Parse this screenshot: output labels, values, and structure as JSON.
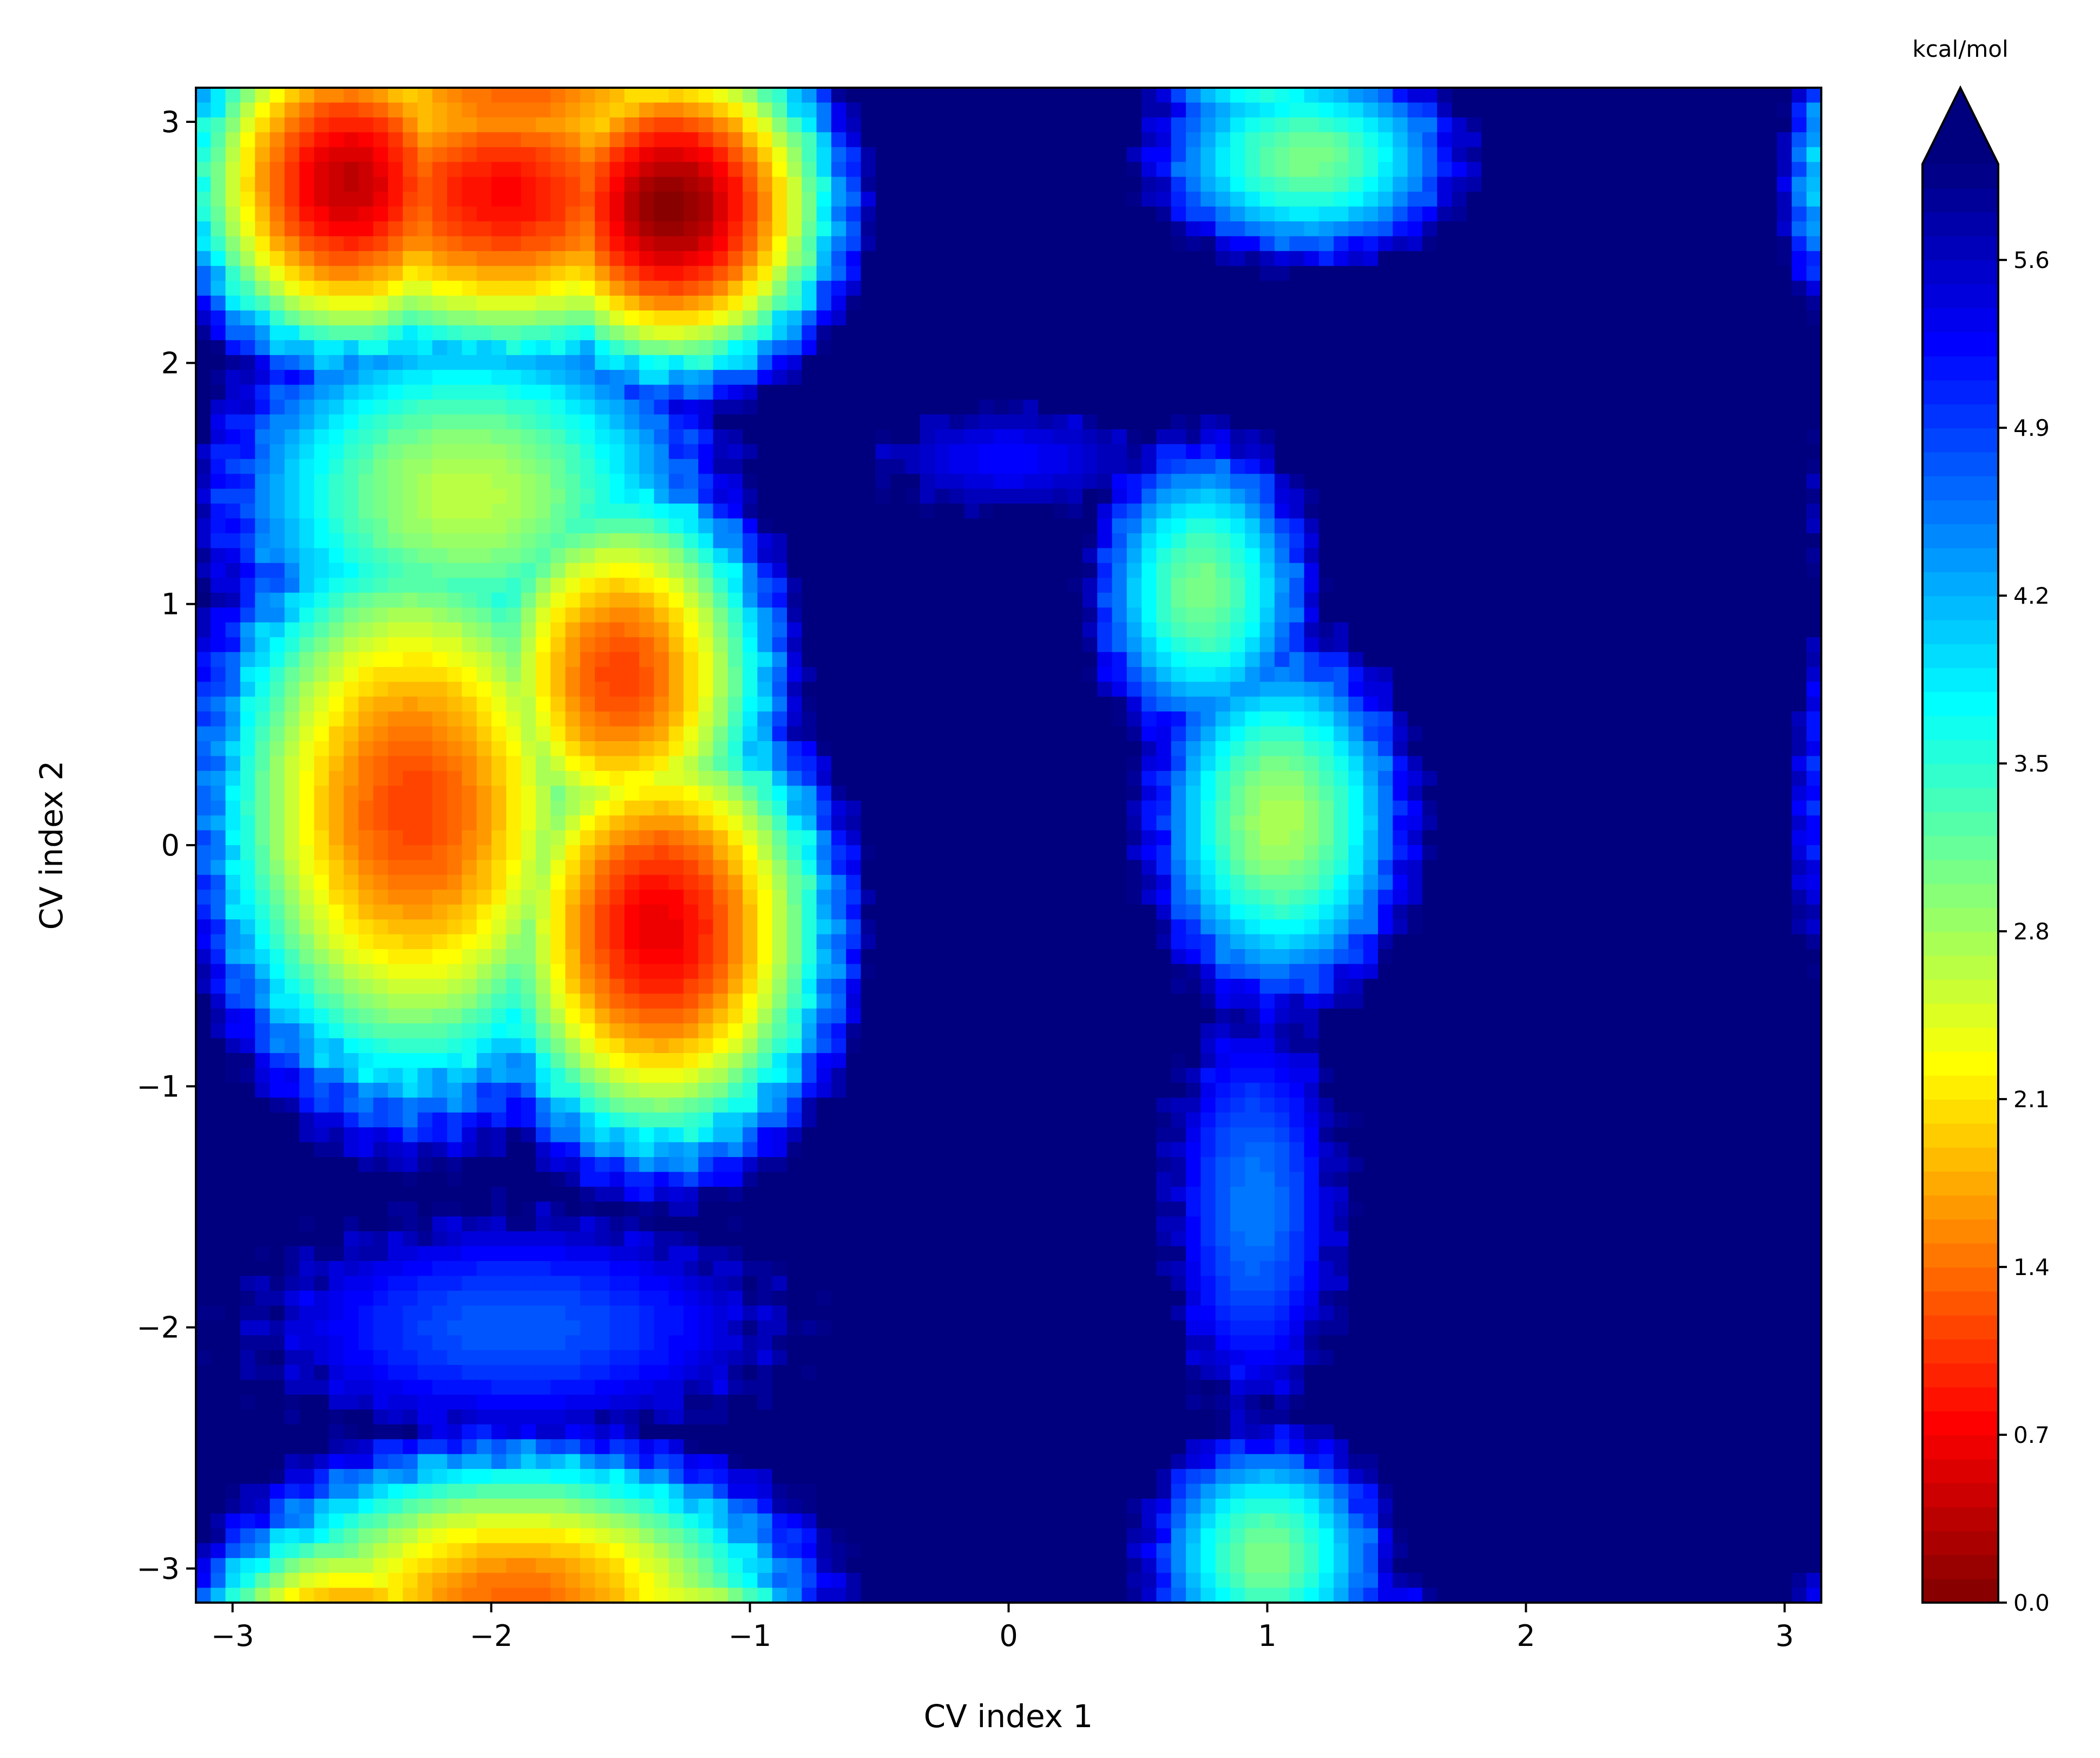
{
  "chart_data": {
    "type": "heatmap",
    "subtype": "filled-contour free energy surface",
    "xlabel": "CV index 1",
    "ylabel": "CV index 2",
    "xlim": [
      -3.14159,
      3.14159
    ],
    "ylim": [
      -3.14159,
      3.14159
    ],
    "xticks": [
      "−3",
      "−2",
      "−1",
      "0",
      "1",
      "2",
      "3"
    ],
    "xtick_values": [
      -3,
      -2,
      -1,
      0,
      1,
      2,
      3
    ],
    "yticks": [
      "−3",
      "−2",
      "−1",
      "0",
      "1",
      "2",
      "3"
    ],
    "ytick_values": [
      -3,
      -2,
      -1,
      0,
      1,
      2,
      3
    ],
    "colormap": "jet_r",
    "colorbar": {
      "label": "kcal/mol",
      "range": [
        0,
        6
      ],
      "extend": "max",
      "ticks": [
        "0.0",
        "0.7",
        "1.4",
        "2.1",
        "2.8",
        "3.5",
        "4.2",
        "4.9",
        "5.6"
      ],
      "tick_values": [
        0,
        0.7,
        1.4,
        2.1,
        2.8,
        3.5,
        4.2,
        4.9,
        5.6
      ]
    },
    "over_color": "#00007f",
    "grid": false,
    "basins": [
      {
        "x": -1.3,
        "y": 2.65,
        "energy": 0.0,
        "rx": 0.8,
        "ry": 0.9
      },
      {
        "x": -2.55,
        "y": 2.75,
        "energy": 0.35,
        "rx": 0.8,
        "ry": 0.95
      },
      {
        "x": -1.95,
        "y": 2.7,
        "energy": 0.75,
        "rx": 1.25,
        "ry": 0.9
      },
      {
        "x": -2.3,
        "y": 0.15,
        "energy": 1.1,
        "rx": 1.0,
        "ry": 1.55
      },
      {
        "x": -1.35,
        "y": -0.35,
        "energy": 0.6,
        "rx": 0.85,
        "ry": 1.2
      },
      {
        "x": -1.5,
        "y": 0.7,
        "energy": 1.1,
        "rx": 0.75,
        "ry": 1.05
      },
      {
        "x": -2.1,
        "y": 1.45,
        "energy": 2.6,
        "rx": 1.15,
        "ry": 0.95
      },
      {
        "x": -1.9,
        "y": -3.14,
        "energy": 1.3,
        "rx": 1.35,
        "ry": 0.8
      },
      {
        "x": 0.75,
        "y": 1.05,
        "energy": 3.0,
        "rx": 0.5,
        "ry": 0.75
      },
      {
        "x": 1.05,
        "y": 0.1,
        "energy": 2.7,
        "rx": 0.6,
        "ry": 0.9
      },
      {
        "x": 1.15,
        "y": 2.85,
        "energy": 3.0,
        "rx": 0.7,
        "ry": 0.5
      },
      {
        "x": 1.0,
        "y": -2.95,
        "energy": 3.0,
        "rx": 0.55,
        "ry": 0.6
      },
      {
        "x": 0.95,
        "y": -1.5,
        "energy": 4.5,
        "rx": 0.4,
        "ry": 1.0
      },
      {
        "x": -1.9,
        "y": -2.0,
        "energy": 4.7,
        "rx": 1.2,
        "ry": 0.55
      },
      {
        "x": 0.0,
        "y": 1.6,
        "energy": 5.2,
        "rx": 0.6,
        "ry": 0.25
      }
    ]
  }
}
